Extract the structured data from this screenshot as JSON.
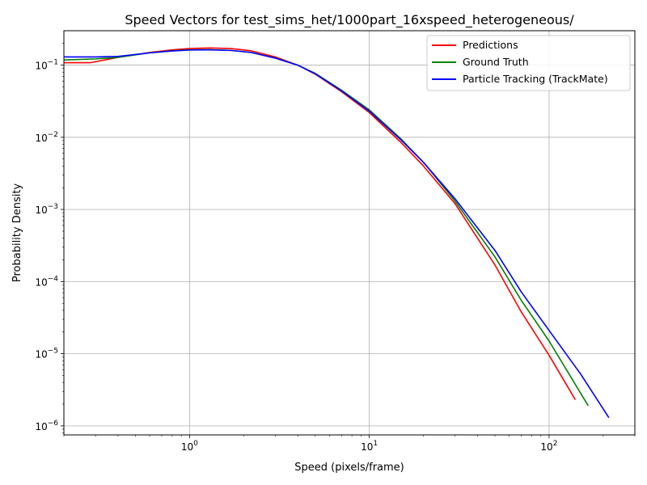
{
  "chart_data": {
    "type": "line",
    "title": "Speed Vectors for test_sims_het/1000part_16xspeed_heterogeneous/",
    "xlabel": "Speed (pixels/frame)",
    "ylabel": "Probability Density",
    "xscale": "log",
    "yscale": "log",
    "xlim": [
      0.2,
      300
    ],
    "ylim": [
      7.5e-07,
      0.3
    ],
    "grid": true,
    "legend_position": "top-right",
    "x_ticks": [
      {
        "value": 1,
        "base": "10",
        "exp": "0"
      },
      {
        "value": 10,
        "base": "10",
        "exp": "1"
      },
      {
        "value": 100,
        "base": "10",
        "exp": "2"
      }
    ],
    "y_ticks": [
      {
        "value": 1e-06,
        "base": "10",
        "exp": "−6"
      },
      {
        "value": 1e-05,
        "base": "10",
        "exp": "−5"
      },
      {
        "value": 0.0001,
        "base": "10",
        "exp": "−4"
      },
      {
        "value": 0.001,
        "base": "10",
        "exp": "−3"
      },
      {
        "value": 0.01,
        "base": "10",
        "exp": "−2"
      },
      {
        "value": 0.1,
        "base": "10",
        "exp": "−1"
      }
    ],
    "series": [
      {
        "name": "Predictions",
        "color": "#ff0000",
        "points": [
          [
            0.2,
            0.108
          ],
          [
            0.28,
            0.108
          ],
          [
            0.4,
            0.128
          ],
          [
            0.6,
            0.15
          ],
          [
            0.8,
            0.163
          ],
          [
            1.0,
            0.17
          ],
          [
            1.3,
            0.173
          ],
          [
            1.7,
            0.17
          ],
          [
            2.2,
            0.158
          ],
          [
            3.0,
            0.13
          ],
          [
            4.0,
            0.1
          ],
          [
            5.0,
            0.075
          ],
          [
            7.0,
            0.043
          ],
          [
            10.0,
            0.022
          ],
          [
            15.0,
            0.0085
          ],
          [
            20.0,
            0.004
          ],
          [
            30.0,
            0.0012
          ],
          [
            50.0,
            0.00017
          ],
          [
            70.0,
            3.8e-05
          ],
          [
            100.0,
            9.5e-06
          ],
          [
            140.0,
            2.3e-06
          ]
        ]
      },
      {
        "name": "Ground Truth",
        "color": "#008000",
        "points": [
          [
            0.2,
            0.118
          ],
          [
            0.3,
            0.122
          ],
          [
            0.4,
            0.128
          ],
          [
            0.6,
            0.148
          ],
          [
            0.8,
            0.158
          ],
          [
            1.0,
            0.163
          ],
          [
            1.3,
            0.164
          ],
          [
            1.7,
            0.16
          ],
          [
            2.2,
            0.15
          ],
          [
            3.0,
            0.126
          ],
          [
            4.0,
            0.1
          ],
          [
            5.0,
            0.077
          ],
          [
            7.0,
            0.045
          ],
          [
            10.0,
            0.024
          ],
          [
            15.0,
            0.0095
          ],
          [
            20.0,
            0.0045
          ],
          [
            30.0,
            0.0013
          ],
          [
            50.0,
            0.00022
          ],
          [
            70.0,
            5.5e-05
          ],
          [
            100.0,
            1.5e-05
          ],
          [
            165.0,
            1.9e-06
          ]
        ]
      },
      {
        "name": "Particle Tracking (TrackMate)",
        "color": "#0000ff",
        "points": [
          [
            0.2,
            0.13
          ],
          [
            0.3,
            0.13
          ],
          [
            0.4,
            0.132
          ],
          [
            0.6,
            0.148
          ],
          [
            0.8,
            0.157
          ],
          [
            1.0,
            0.162
          ],
          [
            1.3,
            0.163
          ],
          [
            1.7,
            0.16
          ],
          [
            2.2,
            0.15
          ],
          [
            3.0,
            0.125
          ],
          [
            4.0,
            0.1
          ],
          [
            5.0,
            0.076
          ],
          [
            7.0,
            0.044
          ],
          [
            10.0,
            0.023
          ],
          [
            15.0,
            0.0092
          ],
          [
            20.0,
            0.0045
          ],
          [
            30.0,
            0.0014
          ],
          [
            50.0,
            0.00027
          ],
          [
            70.0,
            7.2e-05
          ],
          [
            100.0,
            2.1e-05
          ],
          [
            150.0,
            5.2e-06
          ],
          [
            215.0,
            1.3e-06
          ]
        ]
      }
    ]
  }
}
